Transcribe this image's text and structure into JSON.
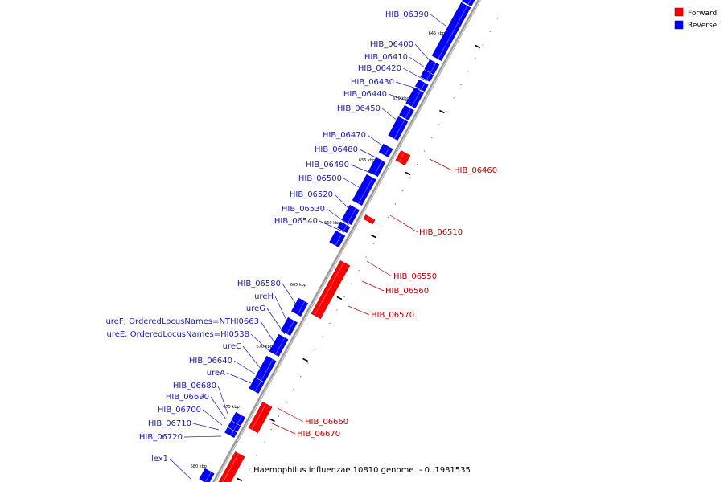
{
  "title": "Haemophilus influenzae 10810 genome. - 0..1981535",
  "legend": {
    "forward": {
      "label": "Forward",
      "color": "#ff0000"
    },
    "reverse": {
      "label": "Reverse",
      "color": "#0000ff"
    }
  },
  "colors": {
    "backbone": "#9a9a9a",
    "reverse_dark": "#0000c0",
    "forward_dark": "#c00000",
    "reverse_label": "#1a1aa8",
    "forward_label": "#b00000"
  },
  "ticks": [
    "645 kbp",
    "650 kbp",
    "655 kbp",
    "660 kbp",
    "665 kbp",
    "670 kbp",
    "675 kbp",
    "680 kbp"
  ],
  "reverse_genes": [
    "HIB_06390",
    "HIB_06400",
    "HIB_06410",
    "HIB_06420",
    "HIB_06430",
    "HIB_06440",
    "HIB_06450",
    "HIB_06470",
    "HIB_06480",
    "HIB_06490",
    "HIB_06500",
    "HIB_06520",
    "HIB_06530",
    "HIB_06540",
    "HIB_06580",
    "ureH",
    "ureG",
    "ureF; OrderedLocusNames=NTHI0663",
    "ureE; OrderedLocusNames=HI0538",
    "ureC",
    "HIB_06640",
    "ureA",
    "HIB_06680",
    "HIB_06690",
    "HIB_06700",
    "HIB_06710",
    "HIB_06720",
    "lex1"
  ],
  "forward_genes": [
    "HIB_06460",
    "HIB_06510",
    "HIB_06550",
    "HIB_06560",
    "HIB_06570",
    "HIB_06660",
    "HIB_06670"
  ]
}
